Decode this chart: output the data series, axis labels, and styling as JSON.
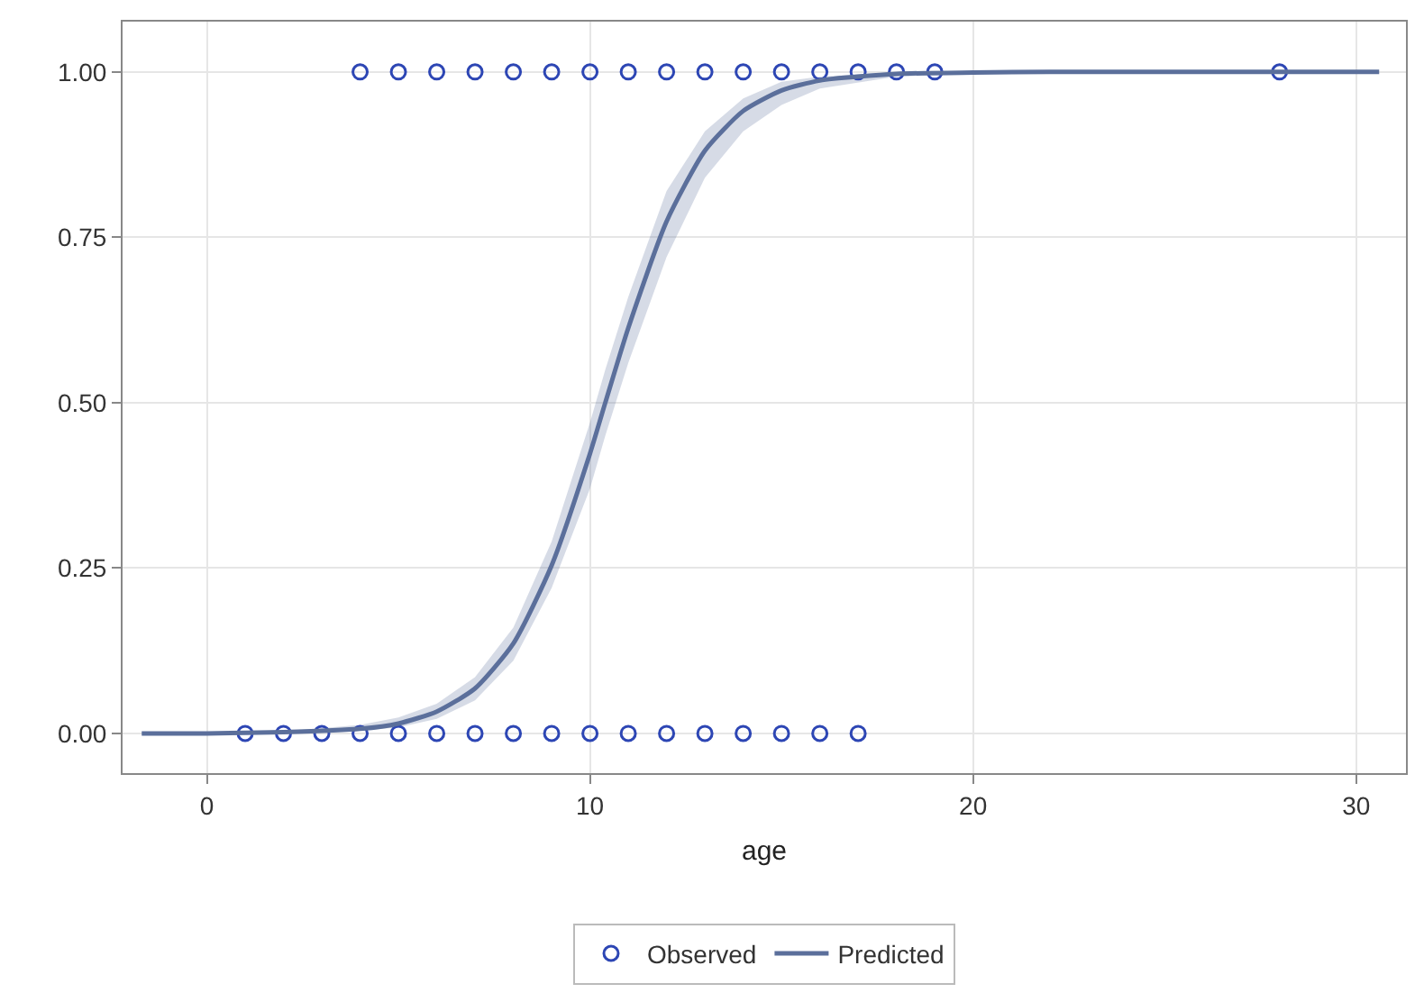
{
  "chart_data": {
    "type": "scatter",
    "xlabel": "age",
    "xlim": [
      -2.2,
      31.3
    ],
    "xticks": [
      0,
      10,
      20,
      30
    ],
    "ylim": [
      -0.06,
      1.076
    ],
    "yticks": [
      {
        "value": 0,
        "label": "0.00"
      },
      {
        "value": 0.25,
        "label": "0.25"
      },
      {
        "value": 0.5,
        "label": "0.50"
      },
      {
        "value": 0.75,
        "label": "0.75"
      },
      {
        "value": 1,
        "label": "1.00"
      }
    ],
    "grid": true,
    "legend": "bottom",
    "series": [
      {
        "name": "Observed",
        "marker": "circle",
        "color": "#2d46b4",
        "x": [
          4,
          5,
          6,
          7,
          8,
          9,
          10,
          11,
          12,
          13,
          14,
          15,
          16,
          17,
          18,
          19,
          28,
          1,
          2,
          3,
          4,
          5,
          6,
          7,
          8,
          9,
          10,
          11,
          12,
          13,
          14,
          15,
          16,
          17
        ],
        "values": [
          1,
          1,
          1,
          1,
          1,
          1,
          1,
          1,
          1,
          1,
          1,
          1,
          1,
          1,
          1,
          1,
          1,
          0,
          0,
          0,
          0,
          0,
          0,
          0,
          0,
          0,
          0,
          0,
          0,
          0,
          0,
          0,
          0,
          0
        ]
      },
      {
        "name": "Predicted",
        "type": "line",
        "marker": "none",
        "line_style": "solid",
        "color": "#5b6f9b",
        "x": [
          -1.7,
          0,
          2,
          4,
          5,
          6,
          7,
          8,
          9,
          10,
          10.4,
          11,
          12,
          13,
          14,
          15,
          16,
          18,
          20,
          22,
          25,
          30.6
        ],
        "values": [
          0,
          0,
          0.002,
          0.007,
          0.015,
          0.033,
          0.068,
          0.136,
          0.254,
          0.423,
          0.5,
          0.613,
          0.774,
          0.881,
          0.941,
          0.972,
          0.987,
          0.997,
          0.999,
          1,
          1,
          1
        ],
        "lower": [
          0,
          0,
          0.001,
          0.004,
          0.009,
          0.022,
          0.05,
          0.11,
          0.22,
          0.37,
          0.45,
          0.56,
          0.72,
          0.84,
          0.91,
          0.95,
          0.975,
          0.993,
          0.997,
          0.999,
          1,
          1
        ],
        "upper": [
          0,
          0,
          0.003,
          0.013,
          0.024,
          0.045,
          0.085,
          0.16,
          0.29,
          0.47,
          0.55,
          0.66,
          0.82,
          0.91,
          0.96,
          0.985,
          0.993,
          0.999,
          1,
          1,
          1,
          1
        ]
      }
    ]
  }
}
